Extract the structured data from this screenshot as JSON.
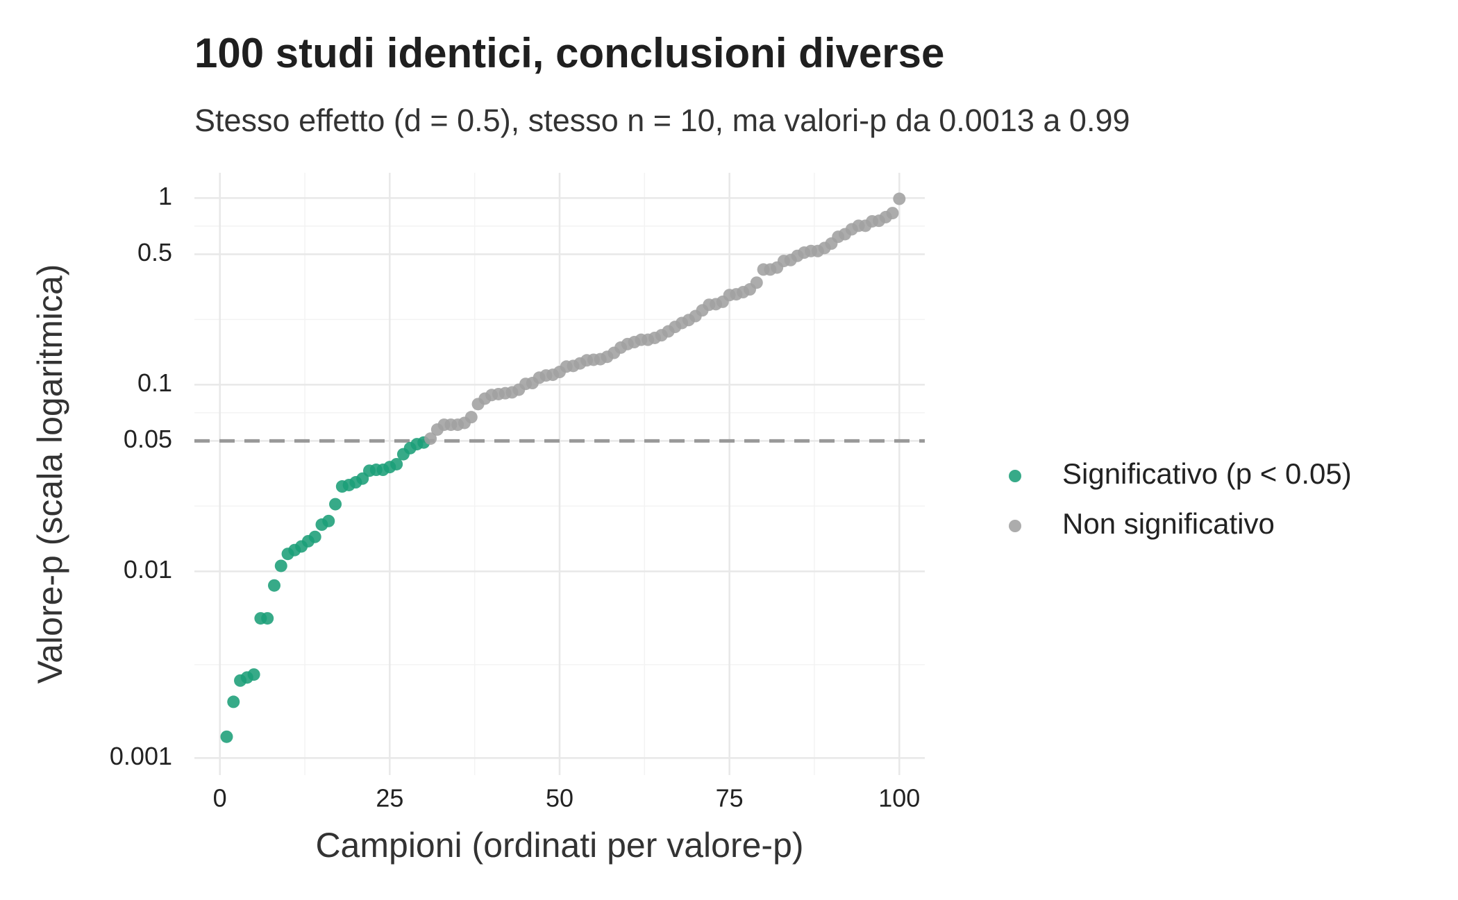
{
  "chart_data": {
    "type": "scatter",
    "title": "100 studi identici, conclusioni diverse",
    "subtitle": "Stesso effetto (d = 0.5), stesso n = 10, ma valori-p da 0.0013 a 0.99",
    "x_label": "Campioni (ordinati per valore-p)",
    "y_label": "Valore-p (scala logaritmica)",
    "log_y": true,
    "grid": true,
    "legend": "right",
    "xlim": [
      -3.75,
      103.75
    ],
    "xticks": [
      0,
      25,
      50,
      75,
      100
    ],
    "ylim": [
      0.00081,
      1.365
    ],
    "yticks": [
      0.001,
      0.01,
      0.05,
      0.1,
      0.5,
      1
    ],
    "hline": 0.05,
    "series": [
      {
        "name": "Significativo (p < 0.05)",
        "color": "#1b9e77",
        "x": [
          1,
          2,
          3,
          4,
          5,
          6,
          7,
          8,
          9,
          10,
          11,
          12,
          13,
          14,
          15,
          16,
          17,
          18,
          19,
          20,
          21,
          22,
          23,
          24,
          25,
          26,
          27,
          28,
          29,
          30
        ],
        "values": [
          0.0013,
          0.002,
          0.0026,
          0.0027,
          0.0028,
          0.0056,
          0.0056,
          0.0084,
          0.0107,
          0.0124,
          0.013,
          0.0136,
          0.0145,
          0.0153,
          0.0178,
          0.0186,
          0.0229,
          0.0285,
          0.029,
          0.03,
          0.0314,
          0.0346,
          0.035,
          0.035,
          0.0362,
          0.0375,
          0.0424,
          0.0457,
          0.048,
          0.049
        ]
      },
      {
        "name": "Non significativo",
        "color": "#a0a0a0",
        "x": [
          31,
          32,
          33,
          34,
          35,
          36,
          37,
          38,
          39,
          40,
          41,
          42,
          43,
          44,
          45,
          46,
          47,
          48,
          49,
          50,
          51,
          52,
          53,
          54,
          55,
          56,
          57,
          58,
          59,
          60,
          61,
          62,
          63,
          64,
          65,
          66,
          67,
          68,
          69,
          70,
          71,
          72,
          73,
          74,
          75,
          76,
          77,
          78,
          79,
          80,
          81,
          82,
          83,
          84,
          85,
          86,
          87,
          88,
          89,
          90,
          91,
          92,
          93,
          94,
          95,
          96,
          97,
          98,
          99,
          100
        ],
        "values": [
          0.0514,
          0.0575,
          0.061,
          0.061,
          0.061,
          0.0624,
          0.067,
          0.0787,
          0.0842,
          0.088,
          0.089,
          0.09,
          0.091,
          0.094,
          0.101,
          0.102,
          0.109,
          0.112,
          0.113,
          0.117,
          0.125,
          0.126,
          0.13,
          0.135,
          0.136,
          0.137,
          0.141,
          0.148,
          0.158,
          0.165,
          0.169,
          0.174,
          0.174,
          0.178,
          0.184,
          0.193,
          0.204,
          0.214,
          0.222,
          0.233,
          0.25,
          0.268,
          0.27,
          0.278,
          0.302,
          0.305,
          0.313,
          0.324,
          0.352,
          0.414,
          0.414,
          0.424,
          0.46,
          0.465,
          0.49,
          0.51,
          0.52,
          0.52,
          0.54,
          0.57,
          0.62,
          0.64,
          0.68,
          0.71,
          0.71,
          0.75,
          0.755,
          0.79,
          0.83,
          0.99
        ]
      }
    ]
  }
}
